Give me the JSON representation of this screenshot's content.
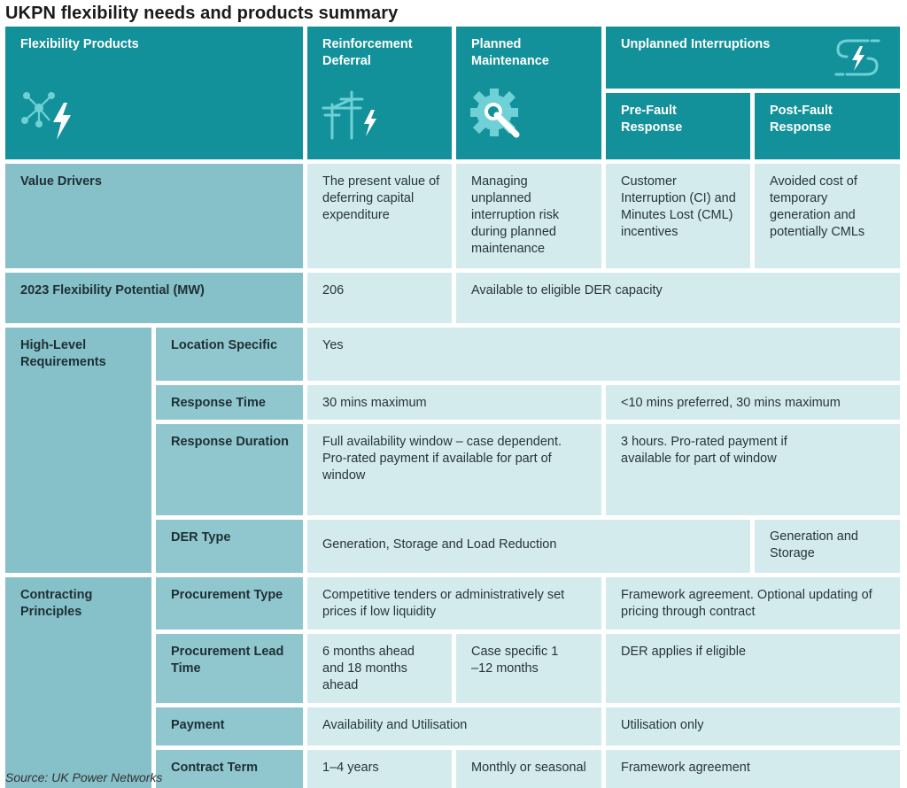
{
  "title": "UKPN flexibility needs and products summary",
  "source": "Source: UK Power Networks",
  "header": {
    "flexibility_products": "Flexibility Products",
    "reinforcement_deferral": "Reinforcement Deferral",
    "planned_maintenance": "Planned Maintenance",
    "unplanned_interruptions": "Unplanned Interruptions",
    "pre_fault_response": "Pre-Fault Response",
    "post_fault_response": "Post-Fault Response"
  },
  "icons": {
    "flexibility_products": "network-lightning-icon",
    "reinforcement_deferral": "power-pylon-icon",
    "planned_maintenance": "gear-wrench-icon",
    "unplanned_interruptions": "lightning-swirl-icon"
  },
  "rows": {
    "value_drivers": {
      "label": "Value Drivers",
      "reinforcement_deferral": "The present value of deferring capital expenditure",
      "planned_maintenance": "Managing unplanned interruption risk during planned maintenance",
      "pre_fault": "Customer Interruption (CI) and Minutes Lost (CML) incentives",
      "post_fault": "Avoided cost of temporary generation and potentially CMLs"
    },
    "flex_potential": {
      "label": "2023 Flexibility Potential (MW)",
      "reinforcement_deferral": "206",
      "others": "Available to eligible DER capacity"
    },
    "high_level": {
      "label": "High-Level Requirements",
      "location_specific": {
        "label": "Location Specific",
        "value": "Yes"
      },
      "response_time": {
        "label": "Response Time",
        "left": "30 mins maximum",
        "right": "<10 mins preferred, 30 mins maximum"
      },
      "response_duration": {
        "label": "Response Duration",
        "left": "Full availability window – case dependent. Pro-rated payment if available for part of window",
        "right": "3 hours. Pro-rated payment if available for part of window"
      },
      "der_type": {
        "label": "DER Type",
        "left": "Generation, Storage and Load Reduction",
        "right": "Generation and Storage"
      }
    },
    "contracting": {
      "label": "Contracting Principles",
      "procurement_type": {
        "label": "Procurement Type",
        "left": "Competitive tenders or administratively set prices if low liquidity",
        "right": "Framework agreement. Optional updating of pricing through contract"
      },
      "procurement_lead_time": {
        "label": "Procurement Lead Time",
        "reinforcement": "6 months ahead and 18 months ahead",
        "planned": "Case specific 1 –12 months",
        "right": "DER applies if eligible"
      },
      "payment": {
        "label": "Payment",
        "left": "Availability and Utilisation",
        "right": "Utilisation only"
      },
      "contract_term": {
        "label": "Contract Term",
        "reinforcement": "1–4 years",
        "planned": "Monthly or seasonal",
        "right": "Framework agreement"
      }
    }
  }
}
